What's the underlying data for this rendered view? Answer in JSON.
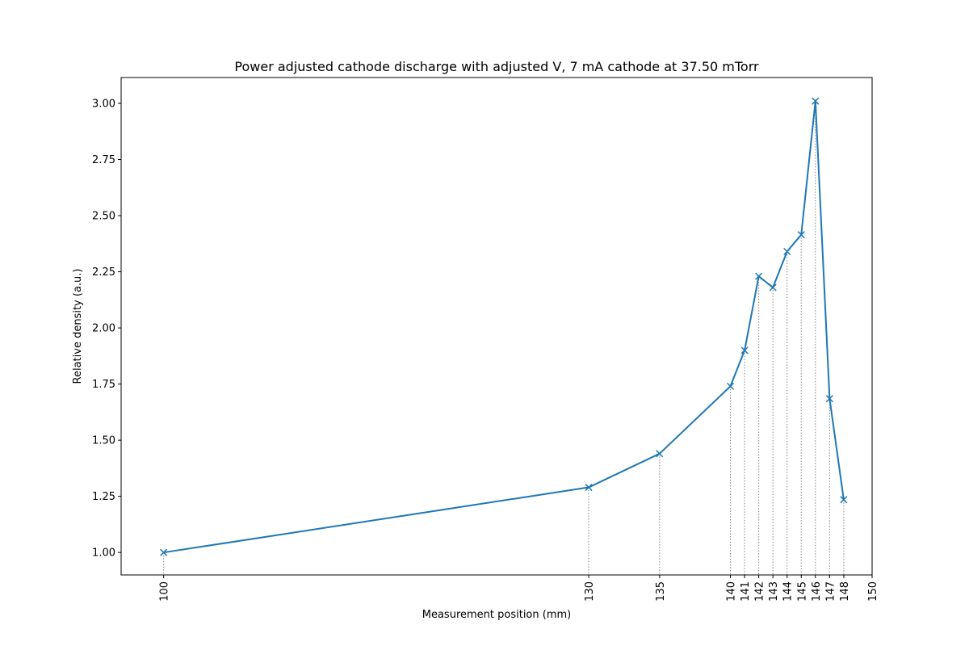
{
  "chart_data": {
    "type": "line",
    "title": "Power adjusted cathode discharge with adjusted V, 7 mA cathode at 37.50 mTorr",
    "xlabel": "Measurement position (mm)",
    "ylabel": "Relative density (a.u.)",
    "xlim": [
      97,
      150
    ],
    "ylim": [
      0.9,
      3.115
    ],
    "xticks": [
      100,
      130,
      135,
      140,
      141,
      142,
      143,
      144,
      145,
      146,
      147,
      148,
      150
    ],
    "yticks": [
      1.0,
      1.25,
      1.5,
      1.75,
      2.0,
      2.25,
      2.5,
      2.75,
      3.0
    ],
    "ytick_labels": [
      "1.00",
      "1.25",
      "1.50",
      "1.75",
      "2.00",
      "2.25",
      "2.50",
      "2.75",
      "3.00"
    ],
    "x": [
      100,
      130,
      135,
      140,
      141,
      142,
      143,
      144,
      145,
      146,
      147,
      148
    ],
    "y": [
      1.0,
      1.29,
      1.44,
      1.74,
      1.9,
      2.23,
      2.18,
      2.34,
      2.415,
      3.01,
      1.685,
      1.235
    ],
    "marker": "x",
    "line_color": "#1f77b4",
    "guide_color": "#808080",
    "grid": false,
    "legend": "none"
  }
}
